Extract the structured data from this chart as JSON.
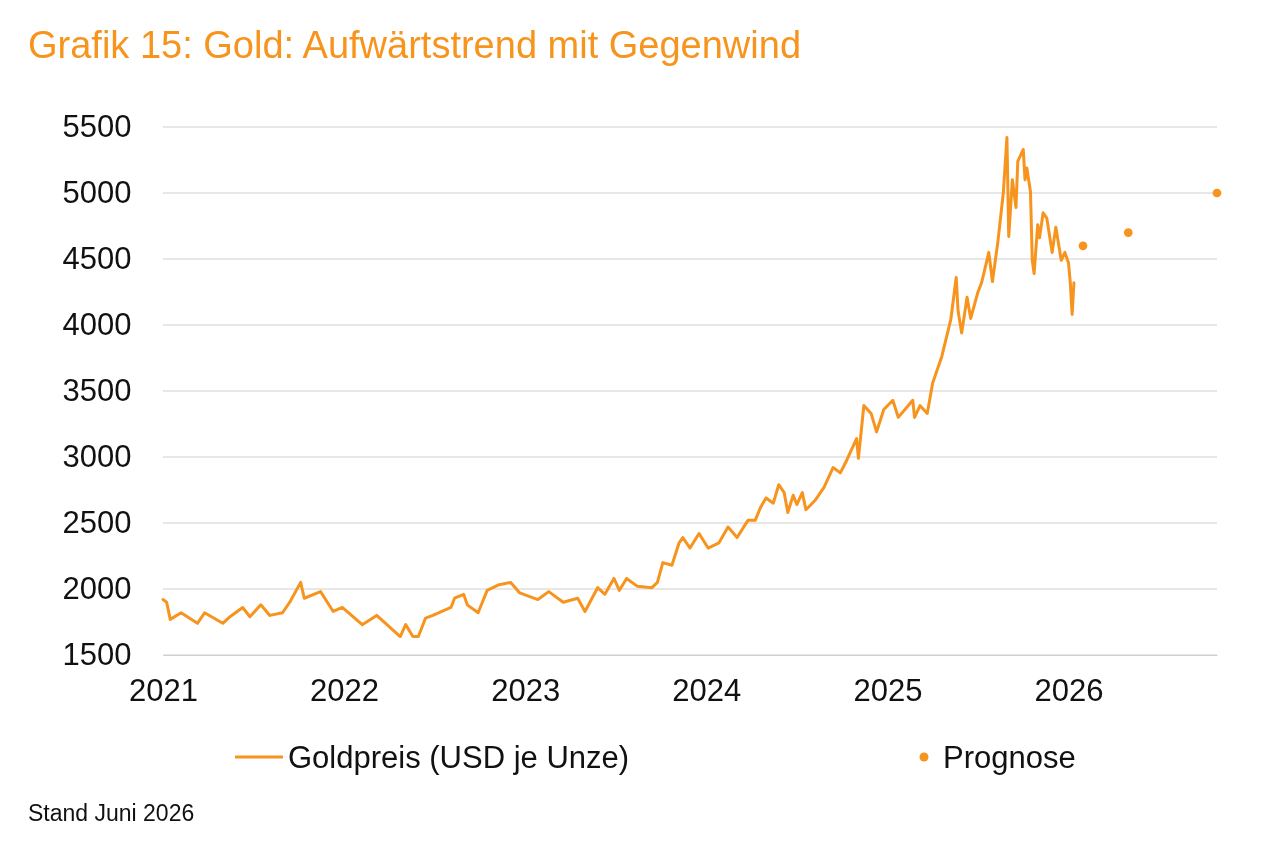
{
  "chart_data": {
    "type": "line",
    "title": "Grafik 15: Gold: Aufwärtstrend mit Gegenwind",
    "xlim": [
      2021,
      2026.82
    ],
    "xticks": [
      2021,
      2022,
      2023,
      2024,
      2025,
      2026
    ],
    "ylim": [
      1500,
      5500
    ],
    "yticks": [
      1500,
      2000,
      2500,
      3000,
      3500,
      4000,
      4500,
      5000,
      5500
    ],
    "grid": "y",
    "legend": "bottom",
    "series": [
      {
        "name": "Goldpreis (USD je Unze)",
        "color": "#f7941d",
        "line_style": "solid",
        "x": [
          2021.0,
          2021.02,
          2021.04,
          2021.1,
          2021.19,
          2021.23,
          2021.33,
          2021.37,
          2021.44,
          2021.48,
          2021.54,
          2021.59,
          2021.66,
          2021.7,
          2021.76,
          2021.78,
          2021.87,
          2021.94,
          2021.99,
          2022.1,
          2022.18,
          2022.31,
          2022.34,
          2022.38,
          2022.41,
          2022.45,
          2022.49,
          2022.59,
          2022.61,
          2022.66,
          2022.68,
          2022.74,
          2022.79,
          2022.85,
          2022.92,
          2022.97,
          2023.07,
          2023.13,
          2023.21,
          2023.29,
          2023.33,
          2023.4,
          2023.44,
          2023.49,
          2023.52,
          2023.56,
          2023.62,
          2023.7,
          2023.73,
          2023.76,
          2023.81,
          2023.85,
          2023.87,
          2023.91,
          2023.96,
          2024.01,
          2024.07,
          2024.12,
          2024.17,
          2024.23,
          2024.27,
          2024.3,
          2024.33,
          2024.37,
          2024.4,
          2024.43,
          2024.45,
          2024.48,
          2024.5,
          2024.53,
          2024.55,
          2024.6,
          2024.65,
          2024.7,
          2024.74,
          2024.77,
          2024.8,
          2024.83,
          2024.84,
          2024.87,
          2024.91,
          2024.94,
          2024.98,
          2025.03,
          2025.06,
          2025.14,
          2025.15,
          2025.18,
          2025.22,
          2025.25,
          2025.3,
          2025.35,
          2025.38,
          2025.39,
          2025.41,
          2025.44,
          2025.46,
          2025.5,
          2025.52,
          2025.56,
          2025.58,
          2025.61,
          2025.64,
          2025.66,
          2025.67,
          2025.69,
          2025.71,
          2025.72,
          2025.75,
          2025.76,
          2025.77,
          2025.79,
          2025.8,
          2025.81,
          2025.83,
          2025.84,
          2025.86,
          2025.88,
          2025.91,
          2025.93,
          2025.96,
          2025.98,
          2026.0,
          2026.01,
          2026.02,
          2026.03
        ],
        "values": [
          1920,
          1900,
          1770,
          1820,
          1740,
          1820,
          1740,
          1790,
          1860,
          1790,
          1880,
          1800,
          1820,
          1900,
          2050,
          1930,
          1980,
          1830,
          1860,
          1730,
          1800,
          1640,
          1730,
          1640,
          1640,
          1780,
          1800,
          1860,
          1930,
          1960,
          1880,
          1820,
          1990,
          2030,
          2050,
          1970,
          1920,
          1980,
          1900,
          1930,
          1830,
          2010,
          1960,
          2080,
          1990,
          2080,
          2020,
          2010,
          2050,
          2200,
          2180,
          2350,
          2390,
          2310,
          2420,
          2310,
          2350,
          2470,
          2390,
          2520,
          2520,
          2620,
          2690,
          2650,
          2790,
          2730,
          2580,
          2710,
          2640,
          2730,
          2600,
          2670,
          2770,
          2920,
          2880,
          2960,
          3050,
          3140,
          2990,
          3390,
          3330,
          3190,
          3360,
          3430,
          3300,
          3430,
          3300,
          3390,
          3330,
          3560,
          3760,
          4040,
          4360,
          4110,
          3940,
          4210,
          4050,
          4250,
          4320,
          4550,
          4330,
          4630,
          5000,
          5420,
          4670,
          5100,
          4890,
          5240,
          5330,
          5100,
          5190,
          5010,
          4490,
          4390,
          4760,
          4660,
          4850,
          4810,
          4550,
          4740,
          4490,
          4550,
          4470,
          4320,
          4080,
          4320
        ]
      },
      {
        "name": "Prognose",
        "type": "scatter",
        "color": "#f7941d",
        "marker": "circle",
        "x": [
          2026.08,
          2026.33,
          2026.82
        ],
        "values": [
          4600,
          4700,
          5000
        ]
      }
    ],
    "annotations": [
      "Stand Juni 2026"
    ]
  }
}
